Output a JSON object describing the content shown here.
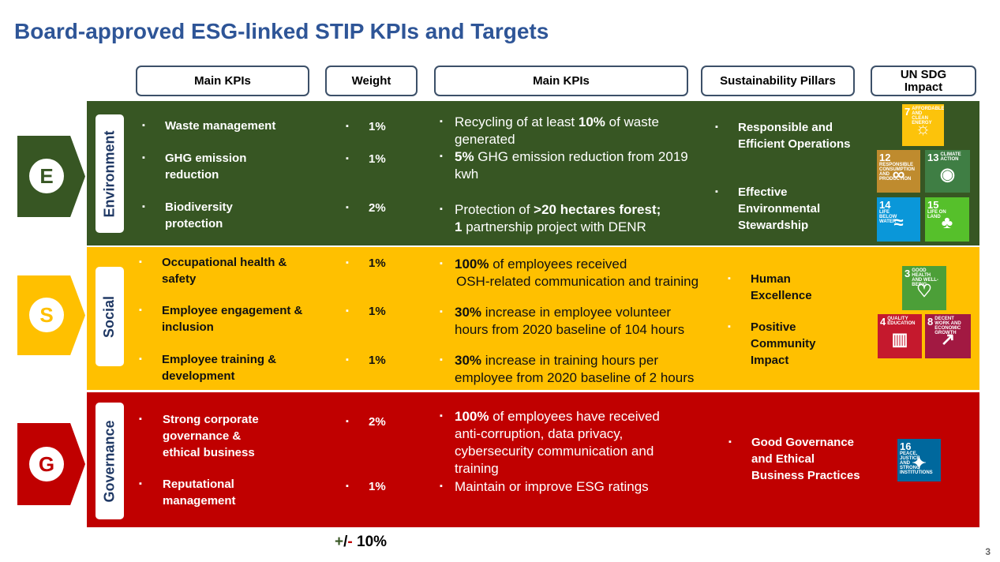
{
  "title": "Board-approved ESG-linked STIP KPIs and Targets",
  "headers": {
    "main_kpis": "Main KPIs",
    "weight": "Weight",
    "main_kpis_targets": "Main KPIs",
    "pillars": "Sustainability Pillars",
    "sdg": "UN SDG Impact"
  },
  "bullet": "▪",
  "environment": {
    "letter": "E",
    "label": "Environment",
    "kpis": [
      "Waste management",
      "GHG emission reduction",
      "Biodiversity protection"
    ],
    "weights": [
      "1%",
      "1%",
      "2%"
    ],
    "targets": [
      {
        "bold": "",
        "pre": "Recycling of at least ",
        "mid": "10%",
        "post": " of waste generated"
      },
      {
        "bold": "5%",
        "pre": "",
        "mid": "",
        "post": " GHG emission reduction from 2019 kwh"
      },
      {
        "bold": "",
        "pre": "Protection of ",
        "mid": ">20 hectares forest;",
        "post": "",
        "line2_bold": "1",
        "line2": " partnership project with DENR"
      }
    ],
    "pillars": [
      "Responsible and Efficient Operations",
      "Effective Environmental Stewardship"
    ],
    "sdgs": [
      {
        "num": "7",
        "text": "AFFORDABLE AND CLEAN ENERGY",
        "color": "#fcc30b",
        "icon": "sun-icon"
      },
      {
        "num": "12",
        "text": "RESPONSIBLE CONSUMPTION AND PRODUCTION",
        "color": "#bf8b2e",
        "icon": "infinity-icon"
      },
      {
        "num": "13",
        "text": "CLIMATE ACTION",
        "color": "#3f7e44",
        "icon": "eye-icon"
      },
      {
        "num": "14",
        "text": "LIFE BELOW WATER",
        "color": "#0a97d9",
        "icon": "fish-icon"
      },
      {
        "num": "15",
        "text": "LIFE ON LAND",
        "color": "#56c02b",
        "icon": "tree-icon"
      }
    ]
  },
  "social": {
    "letter": "S",
    "label": "Social",
    "kpis": [
      "Occupational health & safety",
      "Employee engagement & inclusion",
      "Employee training & development"
    ],
    "weights": [
      "1%",
      "1%",
      "1%"
    ],
    "targets": [
      {
        "bold": "100%",
        "rest": " of employees received",
        "line2": "OSH-related communication and training"
      },
      {
        "bold": "30%",
        "rest": " increase in employee volunteer",
        "line2": "hours from 2020 baseline of 104 hours"
      },
      {
        "bold": "30%",
        "rest": " increase in training hours per",
        "line2": "employee from 2020 baseline of 2 hours"
      }
    ],
    "pillars": [
      "Human Excellence",
      "Positive Community Impact"
    ],
    "sdgs": [
      {
        "num": "3",
        "text": "GOOD HEALTH AND WELL-BEING",
        "color": "#4c9f38",
        "icon": "heartbeat-icon"
      },
      {
        "num": "4",
        "text": "QUALITY EDUCATION",
        "color": "#c5192d",
        "icon": "book-icon"
      },
      {
        "num": "8",
        "text": "DECENT WORK AND ECONOMIC GROWTH",
        "color": "#a21942",
        "icon": "growth-chart-icon"
      }
    ]
  },
  "governance": {
    "letter": "G",
    "label": "Governance",
    "kpis": [
      "Strong corporate governance & ethical business",
      "Reputational management"
    ],
    "weights": [
      "2%",
      "1%"
    ],
    "targets": [
      {
        "bold": "100%",
        "rest": " of employees have received",
        "line2": "anti-corruption, data privacy,",
        "line3": "cybersecurity communication and",
        "line4": "training"
      },
      {
        "bold": "",
        "rest": "Maintain or improve ESG ratings"
      }
    ],
    "pillars": [
      "Good Governance and Ethical Business Practices"
    ],
    "sdgs": [
      {
        "num": "16",
        "text": "PEACE, JUSTICE AND STRONG INSTITUTIONS",
        "color": "#00689d",
        "icon": "dove-icon"
      }
    ]
  },
  "footer": {
    "plus": "+",
    "slash": "/",
    "minus": "-",
    "value": " 10%",
    "plus_color": "#375623",
    "minus_color": "#c00000"
  },
  "page_number": "3"
}
